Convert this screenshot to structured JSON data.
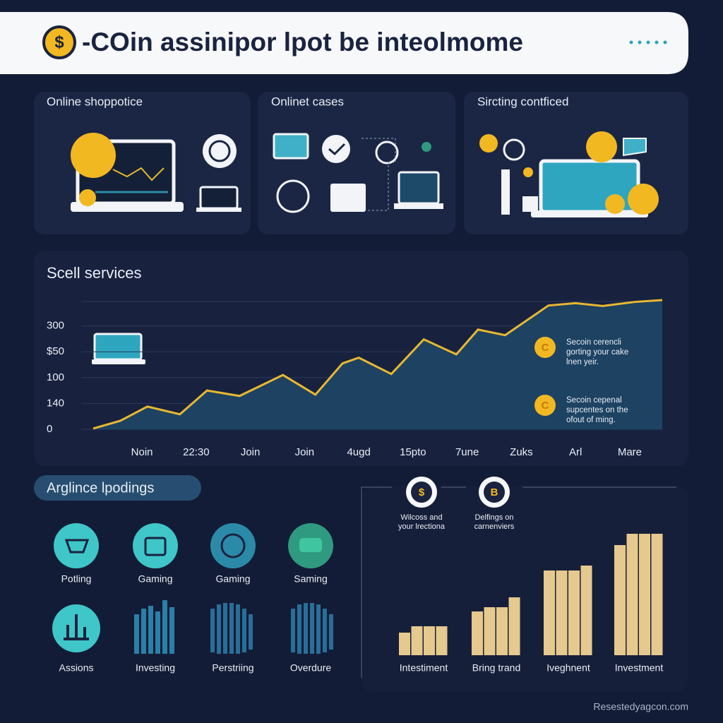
{
  "header": {
    "icon": "$",
    "title": "-COin assinipor lpot be inteolmome"
  },
  "panels": [
    {
      "title": "Online shoppotice"
    },
    {
      "title": "Onlinet cases"
    },
    {
      "title": "Sircting contficed"
    }
  ],
  "chart_data": [
    {
      "type": "area",
      "title": "Scell services",
      "color": "#e8b830",
      "fill": "#1f4868",
      "x": [
        -0.9,
        -0.4,
        0.1,
        0.7,
        1.2,
        1.8,
        2.6,
        3.2,
        3.7,
        4.0,
        4.6,
        5.2,
        5.8,
        6.2,
        6.7,
        7.5,
        8.0,
        8.5,
        9.1,
        9.6
      ],
      "values": [
        0.03,
        0.33,
        0.88,
        0.58,
        1.5,
        1.29,
        2.1,
        1.34,
        2.55,
        2.77,
        2.14,
        3.48,
        2.9,
        3.86,
        3.64,
        4.79,
        4.88,
        4.77,
        4.93,
        5.0
      ],
      "xlim": [
        -0.9,
        9.6
      ],
      "xticks": [
        {
          "value": 0,
          "label": "Noin"
        },
        {
          "value": 1,
          "label": "22:30"
        },
        {
          "value": 2,
          "label": "Join"
        },
        {
          "value": 3,
          "label": "Join"
        },
        {
          "value": 4,
          "label": "4ugd"
        },
        {
          "value": 5,
          "label": "15pto"
        },
        {
          "value": 6,
          "label": "7une"
        },
        {
          "value": 7,
          "label": "Zuks"
        },
        {
          "value": 8,
          "label": "Arl"
        },
        {
          "value": 9,
          "label": "Mare"
        }
      ],
      "ylim": [
        0,
        5
      ],
      "yticks": [
        0,
        {
          "value": 1,
          "label": "140"
        },
        {
          "value": 2,
          "label": "100"
        },
        {
          "value": 3,
          "label": "$50"
        },
        {
          "value": 4,
          "label": "300"
        }
      ],
      "grid": true,
      "annotations": [
        {
          "icon": "C",
          "lines": [
            "Secoin cerencli",
            "gorting your cake",
            "lnen yeir."
          ]
        },
        {
          "icon": "C",
          "lines": [
            "Secoin cepenal",
            "supcentes on the",
            "ofout of ming."
          ]
        }
      ]
    },
    {
      "type": "bar",
      "color": "#e6c98e",
      "categories": [
        "Intestiment",
        "Bring trand",
        "Iveghnent",
        "Investment"
      ],
      "values": [
        [
          32,
          41,
          41,
          41
        ],
        [
          62,
          68,
          68,
          82
        ],
        [
          120,
          120,
          120,
          127
        ],
        [
          156,
          172,
          172,
          172
        ]
      ],
      "ylim": [
        0,
        180
      ],
      "callouts": [
        {
          "icon": "$",
          "lines": [
            "Wilcoss and",
            "your lrectiona"
          ]
        },
        {
          "icon": "B",
          "lines": [
            "Delfings on",
            "carnenviers"
          ]
        }
      ]
    }
  ],
  "features": {
    "title": "Arglince lpodings",
    "items": [
      "Potling",
      "Gaming",
      "Gaming",
      "Saming",
      "Assions",
      "Investing",
      "Perstriing",
      "Overdure"
    ]
  },
  "footer": "Resestedyagcon.com"
}
